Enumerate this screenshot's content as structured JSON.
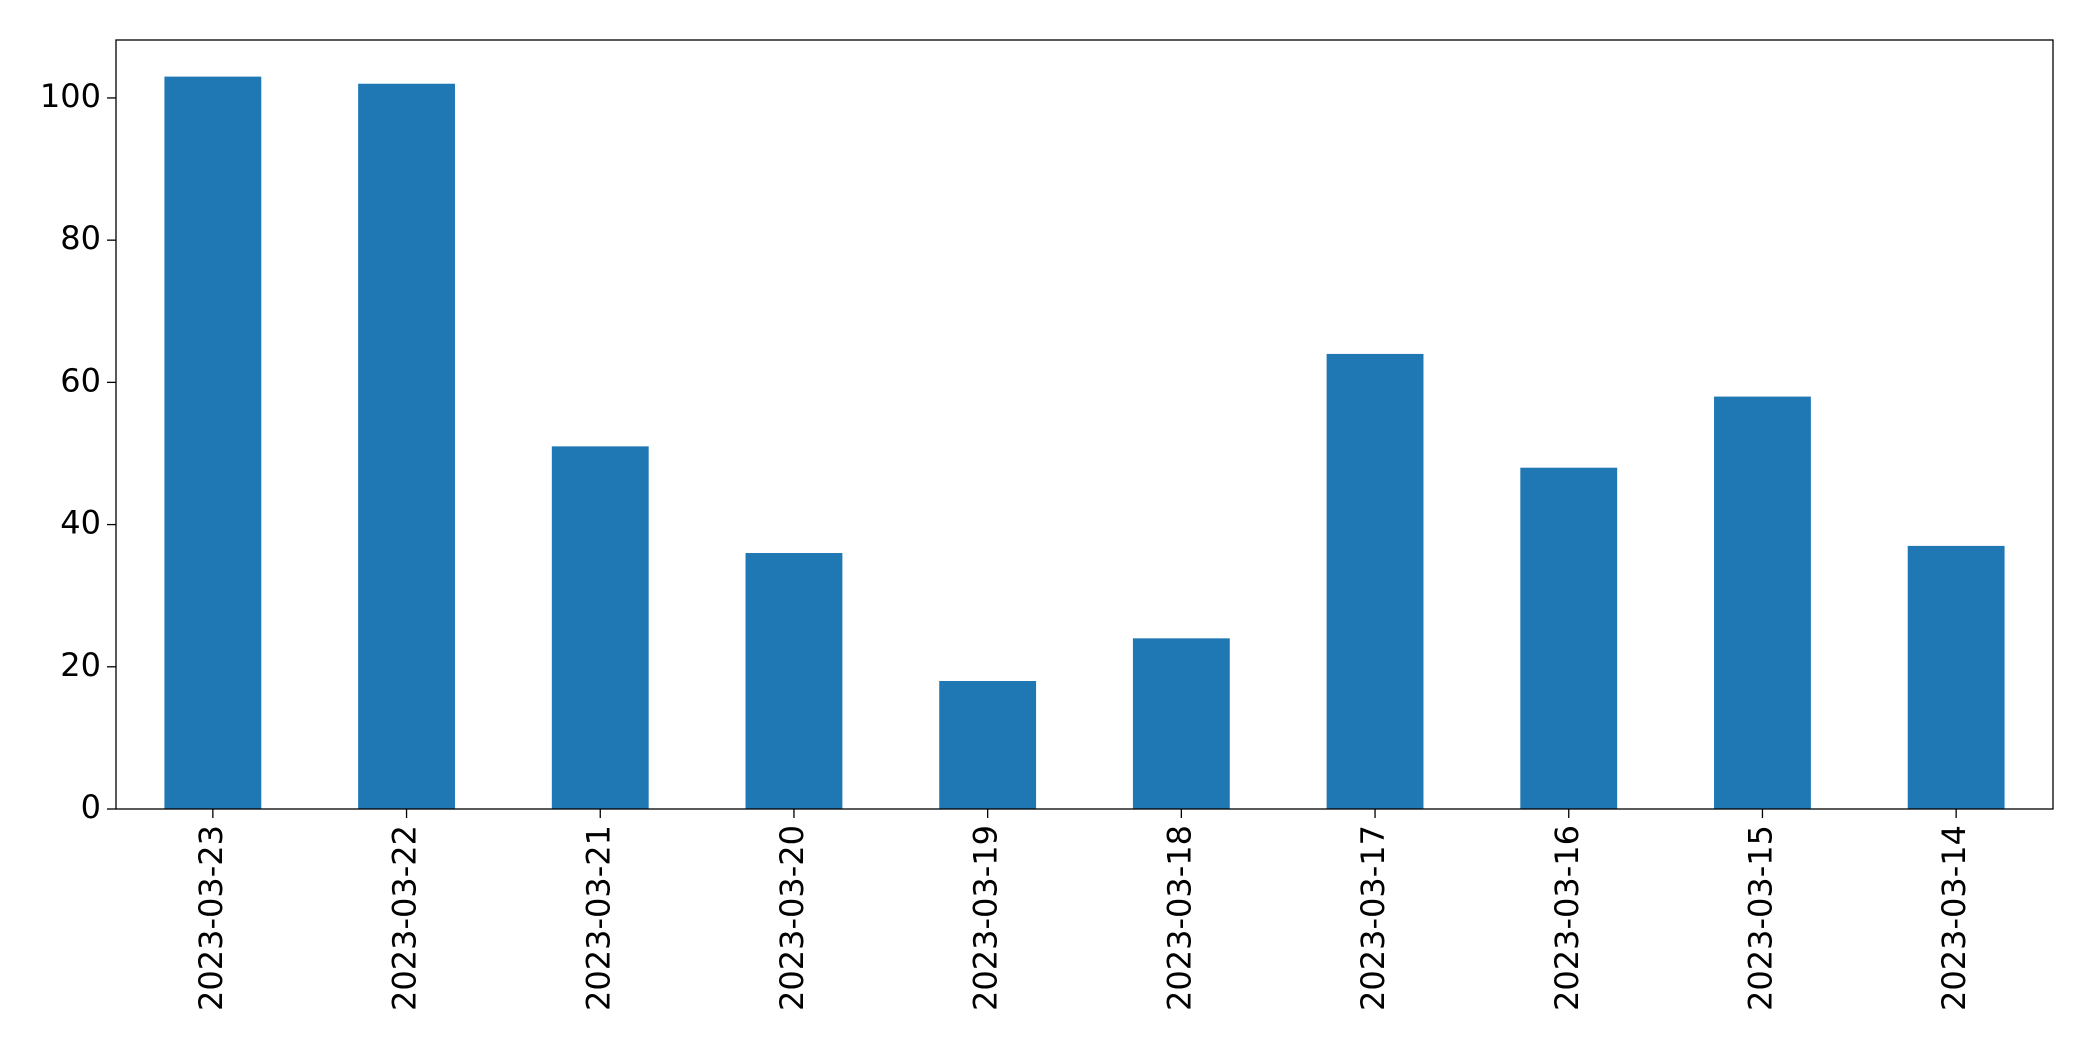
{
  "chart_data": {
    "type": "bar",
    "categories": [
      "2023-03-23",
      "2023-03-22",
      "2023-03-21",
      "2023-03-20",
      "2023-03-19",
      "2023-03-18",
      "2023-03-17",
      "2023-03-16",
      "2023-03-15",
      "2023-03-14"
    ],
    "values": [
      103,
      102,
      51,
      36,
      18,
      24,
      64,
      48,
      58,
      37
    ],
    "color": "#1f77b4",
    "ylim": [
      0,
      108.15
    ],
    "yticks": [
      0,
      20,
      40,
      60,
      80,
      100
    ],
    "grid": false
  }
}
